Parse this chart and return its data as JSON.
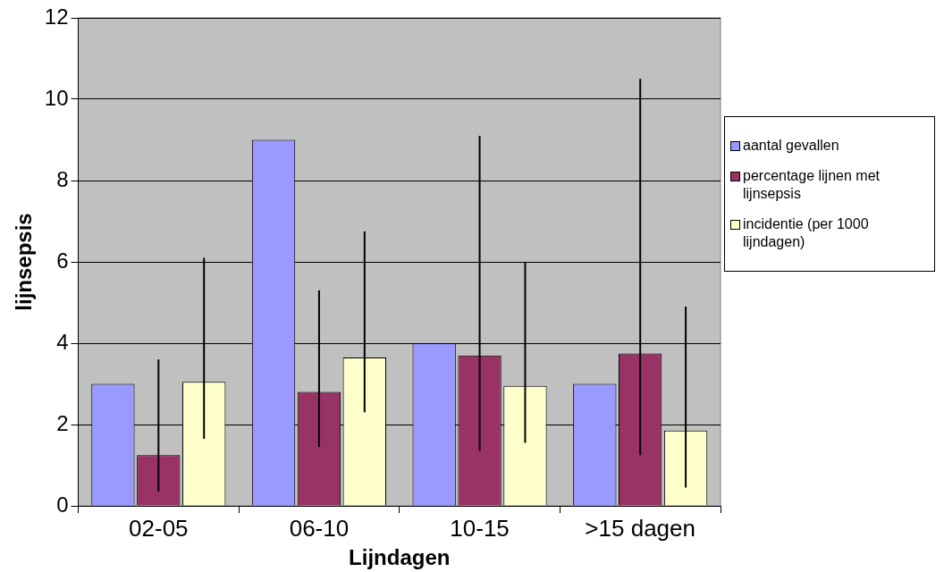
{
  "chart_data": {
    "type": "bar",
    "xlabel": "Lijndagen",
    "ylabel": "lijnsepsis",
    "categories": [
      "02-05",
      "06-10",
      "10-15",
      ">15 dagen"
    ],
    "series": [
      {
        "name": "aantal gevallen",
        "color": "#9999ff",
        "values": [
          3,
          9,
          4,
          3
        ]
      },
      {
        "name": "percentage lijnen met lijnsepsis",
        "color": "#993366",
        "values": [
          1.25,
          2.8,
          3.7,
          3.75
        ],
        "errors": [
          [
            0.35,
            3.6
          ],
          [
            1.45,
            5.3
          ],
          [
            1.35,
            9.1
          ],
          [
            1.25,
            10.5
          ]
        ]
      },
      {
        "name": "incidentie (per 1000 lijndagen)",
        "color": "#ffffcc",
        "values": [
          3.05,
          3.65,
          2.95,
          1.85
        ],
        "errors": [
          [
            1.65,
            6.1
          ],
          [
            2.3,
            6.75
          ],
          [
            1.55,
            6.0
          ],
          [
            0.45,
            4.9
          ]
        ]
      }
    ],
    "ylim": [
      0,
      12
    ],
    "yticks": [
      0,
      2,
      4,
      6,
      8,
      10,
      12
    ],
    "grid": "y",
    "legend": "right"
  }
}
